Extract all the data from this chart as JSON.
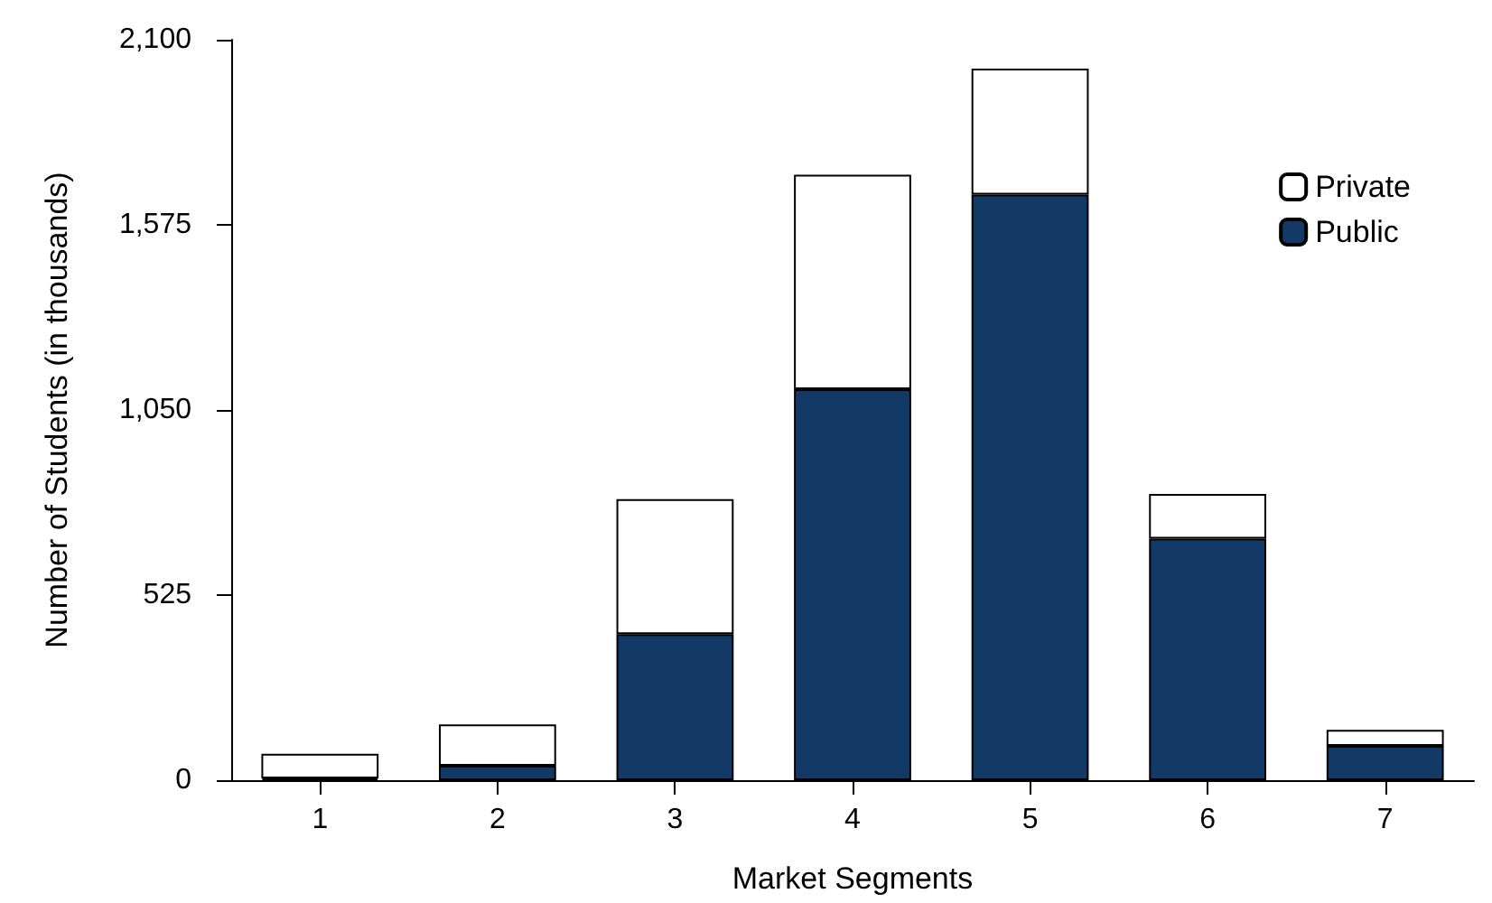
{
  "chart_data": {
    "type": "bar",
    "xlabel": "Market Segments",
    "ylabel": "Number of Students (in thousands)",
    "categories": [
      "1",
      "2",
      "3",
      "4",
      "5",
      "6",
      "7"
    ],
    "series": [
      {
        "name": "Public",
        "color": "#133a66",
        "values": [
          5,
          41,
          414,
          1109,
          1661,
          685,
          97
        ]
      },
      {
        "name": "Private",
        "color": "#ffffff",
        "values": [
          70,
          117,
          383,
          608,
          357,
          127,
          46
        ]
      }
    ],
    "stacked": true,
    "ylim": [
      0,
      2100
    ],
    "yticks": [
      {
        "value": 0,
        "label": "0"
      },
      {
        "value": 525,
        "label": "525"
      },
      {
        "value": 1050,
        "label": "1,050"
      },
      {
        "value": 1575,
        "label": "1,575"
      },
      {
        "value": 2100,
        "label": "2,100"
      }
    ],
    "grid": false,
    "legend": "top right"
  }
}
